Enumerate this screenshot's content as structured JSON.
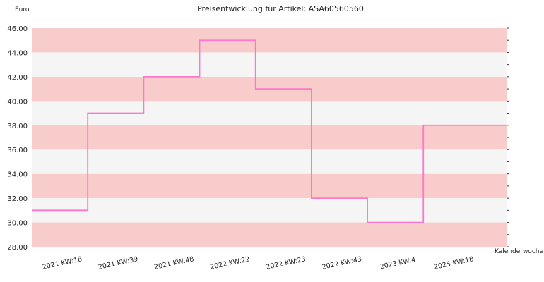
{
  "chart_data": {
    "type": "line",
    "step": true,
    "title": "Preisentwicklung für Artikel: ASA60560560",
    "ylabel": "Euro",
    "xlabel": "Kalenderwoche",
    "ylim": [
      28,
      46
    ],
    "y_ticks": [
      "28.00",
      "30.00",
      "32.00",
      "34.00",
      "36.00",
      "38.00",
      "40.00",
      "42.00",
      "44.00",
      "46.00"
    ],
    "categories": [
      "2021 KW:18",
      "2021 KW:39",
      "2021 KW:48",
      "2022 KW:22",
      "2022 KW:23",
      "2022 KW:43",
      "2023 KW:4",
      "2025 KW:18"
    ],
    "values": [
      31,
      39,
      42,
      45,
      41,
      32,
      30,
      38
    ],
    "grid": true,
    "colors": {
      "line": "#ff77cc",
      "band_a": "#f9cccc",
      "band_b": "#f5f5f5"
    }
  }
}
